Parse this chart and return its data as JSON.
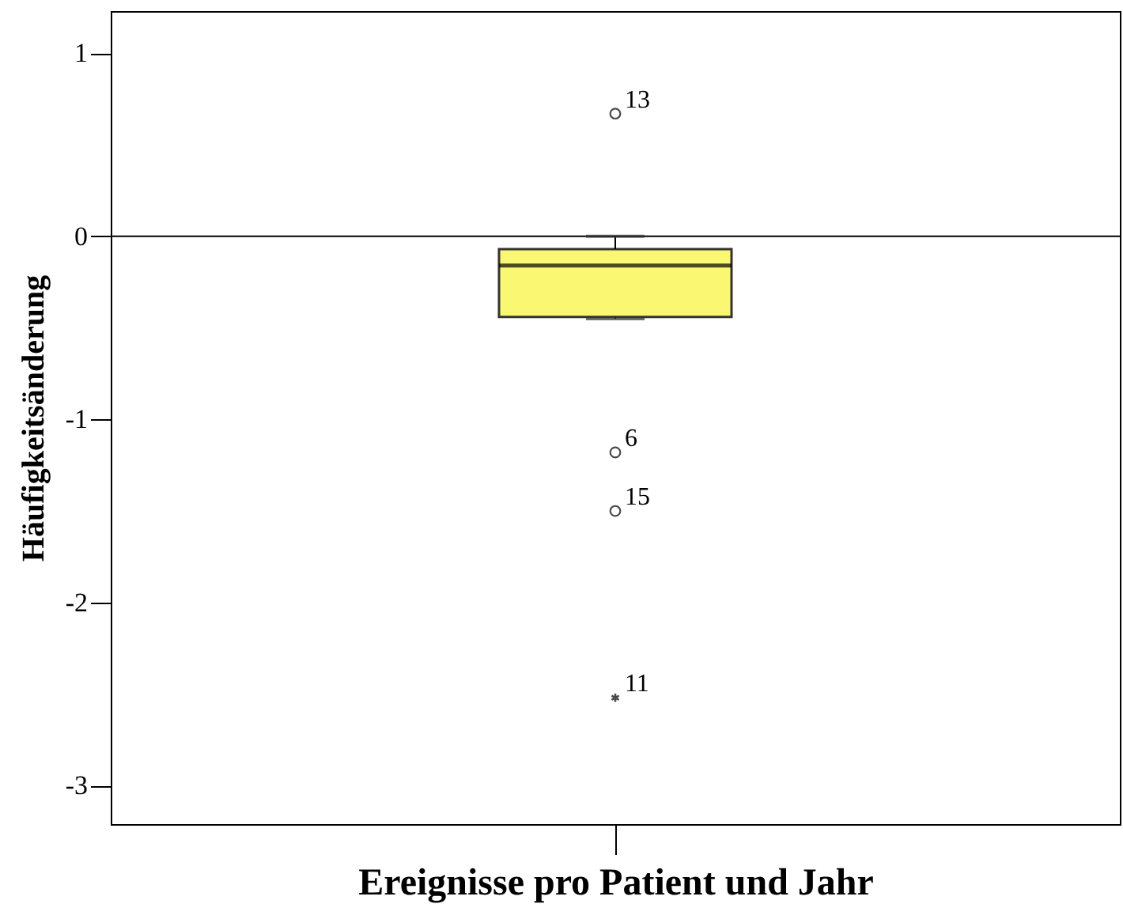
{
  "chart_data": {
    "type": "box",
    "xlabel": "Ereignisse pro Patient und Jahr",
    "ylabel": "Häufigkeitsänderung",
    "categories": [
      null
    ],
    "color": "#faf873",
    "boxes": [
      {
        "low": -0.45,
        "q1": -0.44,
        "median": -0.16,
        "q3": -0.07,
        "high": 0,
        "outliers": [
          0.67,
          -1.18,
          -1.5,
          -2.52
        ]
      }
    ],
    "ylim": [
      -3.21,
      1.23
    ],
    "yticks": [
      -3,
      -2,
      -1,
      0,
      1
    ],
    "ref_lines": [
      {
        "axis": "y",
        "value": 0
      }
    ],
    "annotations": [
      "13",
      "6",
      "15",
      "11"
    ],
    "grid": false
  }
}
